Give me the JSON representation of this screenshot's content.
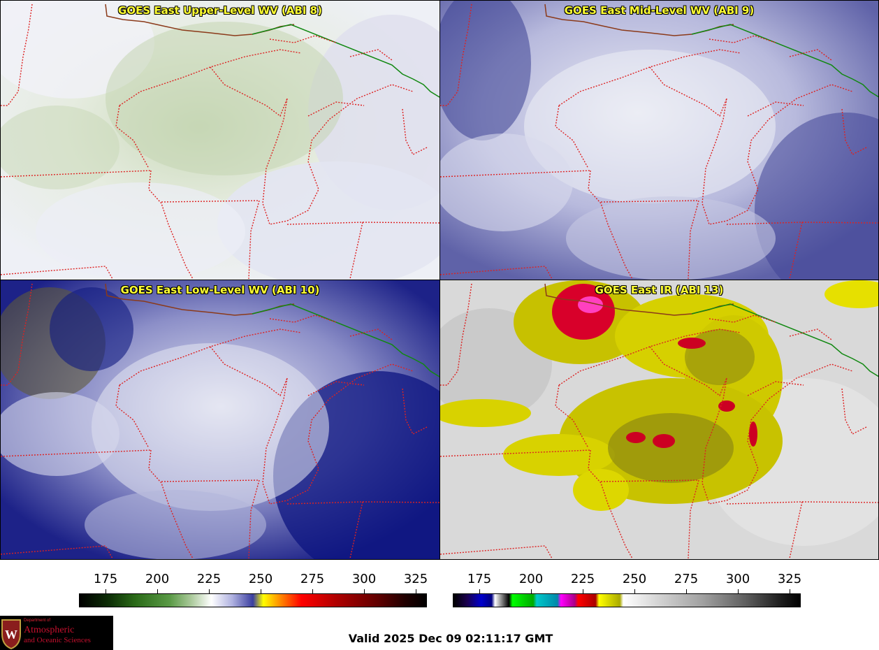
{
  "panels": [
    {
      "title": "GOES East Upper-Level WV (ABI 8)"
    },
    {
      "title": "GOES East Mid-Level WV (ABI 9)"
    },
    {
      "title": "GOES East Low-Level WV (ABI 10)"
    },
    {
      "title": "GOES East IR (ABI 13)"
    }
  ],
  "colorbars": {
    "wv": {
      "ticks": [
        "175",
        "200",
        "225",
        "250",
        "275",
        "300",
        "325"
      ]
    },
    "ir": {
      "ticks": [
        "175",
        "200",
        "225",
        "250",
        "275",
        "300",
        "325"
      ]
    }
  },
  "valid_text": "Valid 2025 Dec 09 02:11:17 GMT",
  "logo": {
    "dept": "Department of",
    "line1": "Atmospheric",
    "line2": "and Oceanic Sciences"
  },
  "colors": {
    "border_state": "#dd2222",
    "border_country": "#118811",
    "coast": "#8b3a1a",
    "title_text": "#ffff33",
    "logo_red": "#c8102e"
  }
}
